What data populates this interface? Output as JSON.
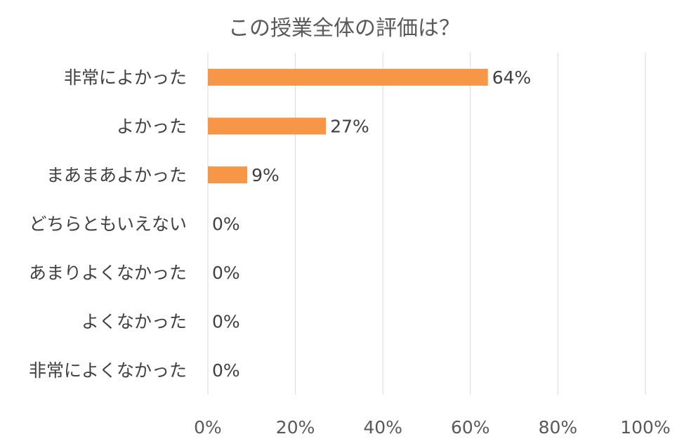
{
  "chart_data": {
    "type": "bar",
    "orientation": "horizontal",
    "title": "この授業全体の評価は？",
    "categories": [
      "非常によかった",
      "よかった",
      "まあまあよかった",
      "どちらともいえない",
      "あまりよくなかった",
      "よくなかった",
      "非常によくなかった"
    ],
    "values": [
      64,
      27,
      9,
      0,
      0,
      0,
      0
    ],
    "data_labels": [
      "64%",
      "27%",
      "9%",
      "0%",
      "0%",
      "0%",
      "0%"
    ],
    "xlim": [
      0,
      100
    ],
    "x_ticks": [
      0,
      20,
      40,
      60,
      80,
      100
    ],
    "x_tick_labels": [
      "0%",
      "20%",
      "40%",
      "60%",
      "80%",
      "100%"
    ],
    "grid": true,
    "legend": "none",
    "bar_color": "#F79646"
  }
}
